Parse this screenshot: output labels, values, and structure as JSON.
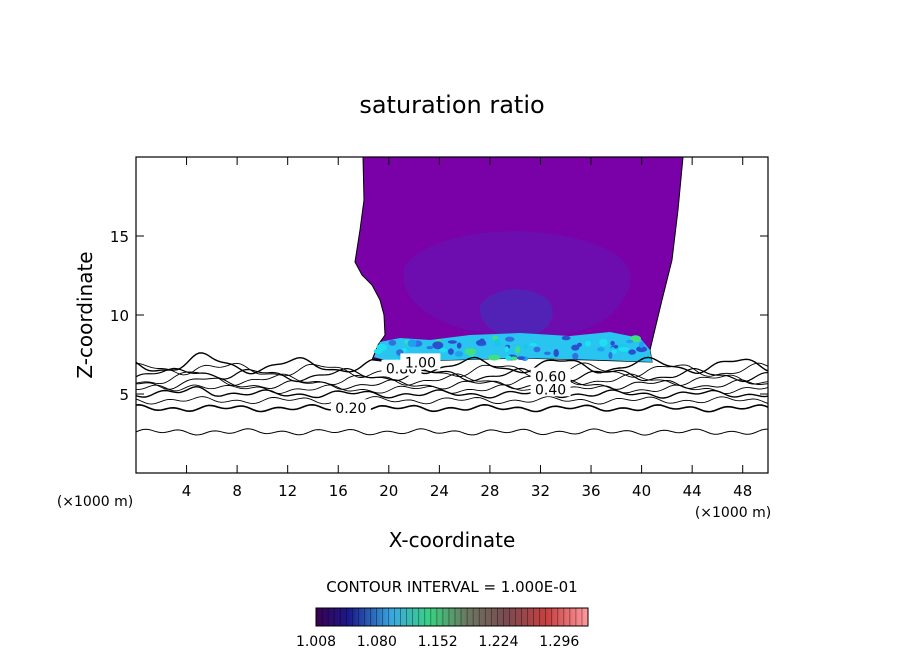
{
  "chart_data": {
    "type": "contour",
    "title": "saturation ratio",
    "xlabel": "X-coordinate",
    "ylabel": "Z-coordinate",
    "x_unit": "(×1000 m)",
    "y_unit": "(×1000 m)",
    "xlim": [
      0,
      50
    ],
    "ylim": [
      0,
      20
    ],
    "x_ticks": [
      4,
      8,
      12,
      16,
      20,
      24,
      28,
      32,
      36,
      40,
      44,
      48
    ],
    "y_ticks": [
      5,
      10,
      15
    ],
    "contour_interval": "CONTOUR INTERVAL = 1.000E-01",
    "contour_labels": [
      {
        "text": "0.20",
        "x": 17.0,
        "y": 4.1
      },
      {
        "text": "0.40",
        "x": 32.8,
        "y": 5.3
      },
      {
        "text": "0.60",
        "x": 32.8,
        "y": 6.1
      },
      {
        "text": "0.80",
        "x": 21.0,
        "y": 6.6
      },
      {
        "text": "1.00",
        "x": 22.5,
        "y": 7.0
      }
    ],
    "colorbar": {
      "ticks": [
        "1.008",
        "1.080",
        "1.152",
        "1.224",
        "1.296"
      ],
      "range": [
        1.008,
        1.33
      ]
    },
    "colors": {
      "field": "#7a00a8",
      "field_dark": "#5b1aa6",
      "core": "#3f3fc4",
      "bright": "#29c4f0"
    }
  }
}
